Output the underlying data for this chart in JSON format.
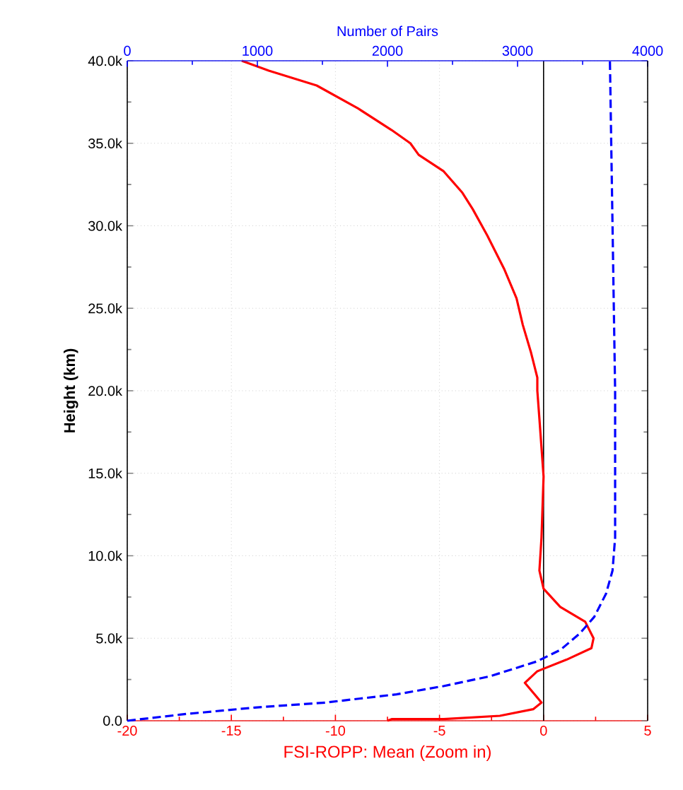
{
  "chart_data": {
    "type": "line",
    "xlabel": "FSI-ROPP: Mean (Zoom in)",
    "x2label": "Number of Pairs",
    "ylabel": "Height (km)",
    "xlim": [
      -20,
      5
    ],
    "xticks": [
      -20,
      -15,
      -10,
      -5,
      0,
      5
    ],
    "x2lim": [
      0,
      4000
    ],
    "x2ticks": [
      0,
      1000,
      2000,
      3000,
      4000
    ],
    "ylim": [
      0,
      40000
    ],
    "yticks": [
      {
        "value": 0,
        "label": "0.0"
      },
      {
        "value": 5000,
        "label": "5.0k"
      },
      {
        "value": 10000,
        "label": "10.0k"
      },
      {
        "value": 15000,
        "label": "15.0k"
      },
      {
        "value": 20000,
        "label": "20.0k"
      },
      {
        "value": 25000,
        "label": "25.0k"
      },
      {
        "value": 30000,
        "label": "30.0k"
      },
      {
        "value": 35000,
        "label": "35.0k"
      },
      {
        "value": 40000,
        "label": "40.0k"
      }
    ],
    "grid": true,
    "ref_lines": [
      {
        "axis": "x",
        "value": 0,
        "color": "#000000"
      }
    ],
    "series": [
      {
        "color": "#ff0000",
        "line_style": "solid",
        "x": [
          -7.5,
          -7.3,
          -4.8,
          -2.1,
          -0.5,
          -0.1,
          -0.5,
          -0.9,
          -0.3,
          1.1,
          2.3,
          2.4,
          2.0,
          0.8,
          0.0,
          -0.2,
          -0.1,
          0.0,
          -0.2,
          -0.3,
          -0.3,
          -0.6,
          -1.0,
          -1.3,
          -1.9,
          -2.7,
          -3.4,
          -3.9,
          -4.8,
          -6.0,
          -6.4,
          -7.3,
          -8.9,
          -10.9,
          -13.2,
          -14.5
        ],
        "values": [
          0,
          100,
          100,
          300,
          700,
          1100,
          1700,
          2300,
          3000,
          3700,
          4400,
          5000,
          6000,
          6900,
          8000,
          9100,
          11100,
          14800,
          18300,
          20000,
          20800,
          22300,
          24000,
          25600,
          27400,
          29400,
          31000,
          32000,
          33300,
          34300,
          35000,
          35800,
          37100,
          38500,
          39400,
          40000
        ]
      },
      {
        "color": "#0000ff",
        "line_style": "dashed",
        "axis": "x2",
        "x": [
          0,
          440,
          980,
          1520,
          2070,
          2430,
          2790,
          3150,
          3330,
          3480,
          3590,
          3680,
          3730,
          3750,
          3750,
          3710
        ],
        "values": [
          0,
          400,
          800,
          1100,
          1600,
          2100,
          2700,
          3600,
          4300,
          5300,
          6300,
          7700,
          9100,
          11100,
          20000,
          40000
        ]
      }
    ]
  }
}
